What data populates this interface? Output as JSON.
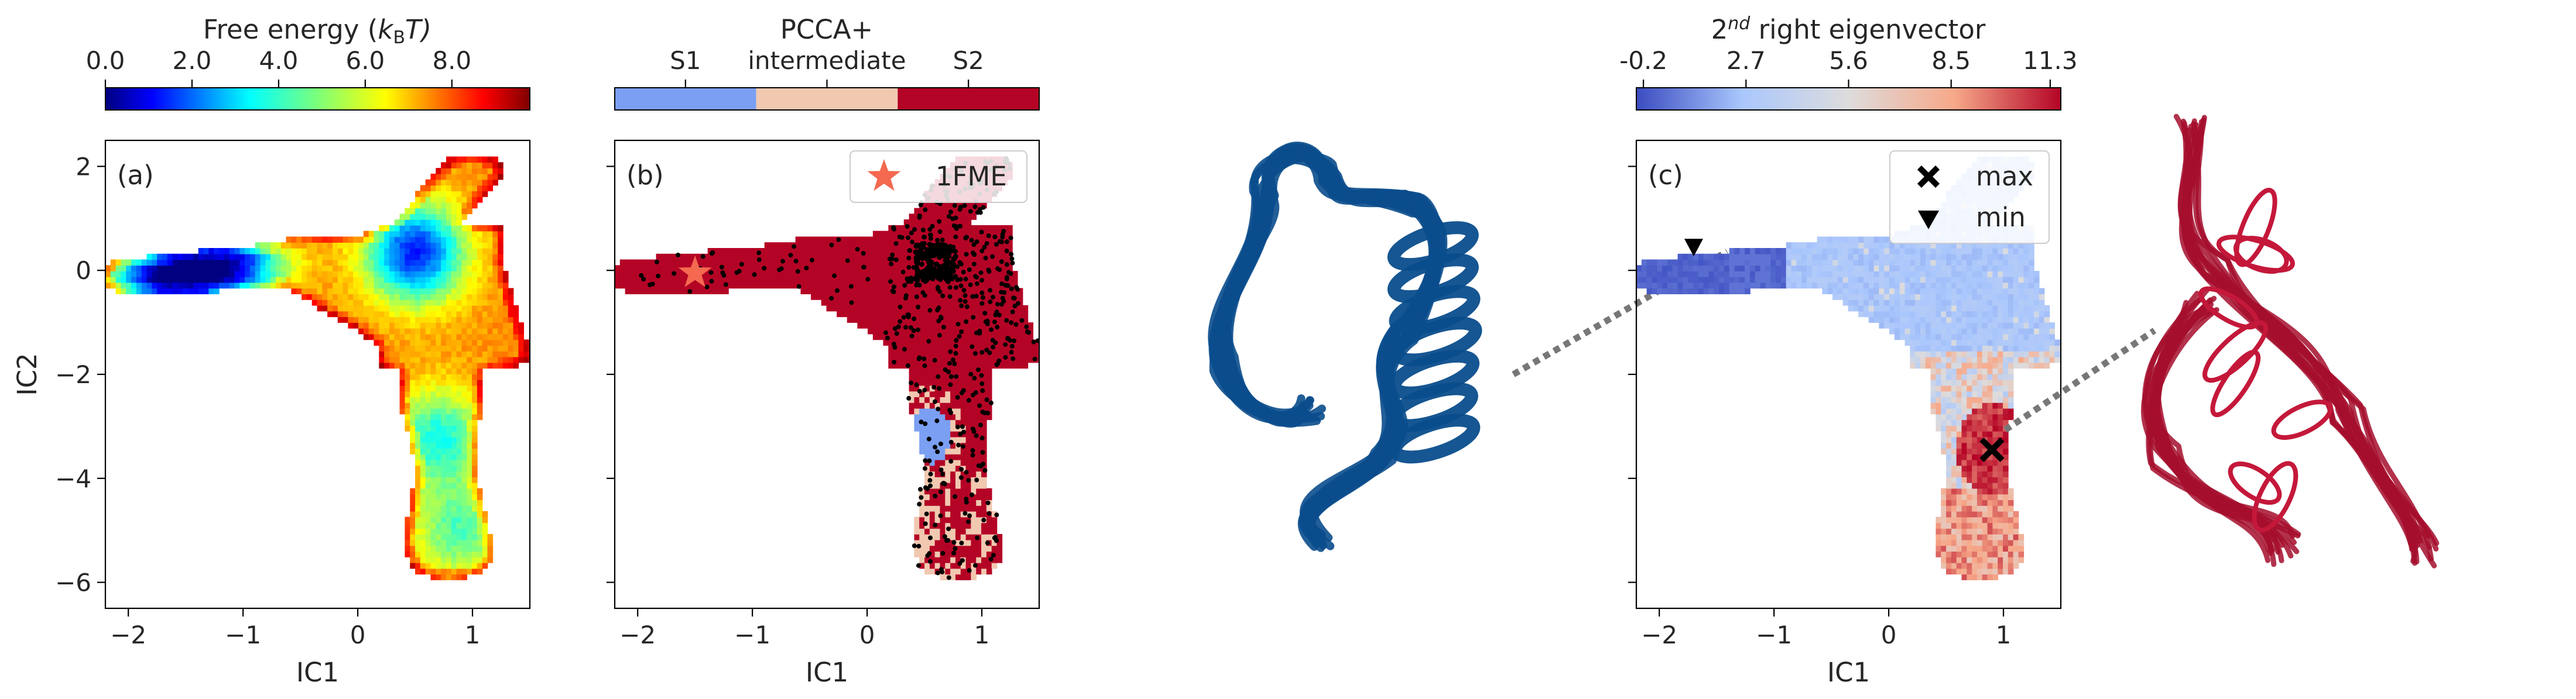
{
  "chart_data": [
    {
      "type": "heatmap",
      "panel_label": "(a)",
      "colorbar": {
        "title": "Free energy (",
        "title_symbol": "k",
        "title_sub": "B",
        "title_tail": "T)",
        "ticks": [
          "0.0",
          "2.0",
          "4.0",
          "6.0",
          "8.0"
        ],
        "tick_values": [
          0,
          2,
          4,
          6,
          8
        ],
        "range": [
          0,
          9.8
        ],
        "colormap": "jet"
      },
      "xlabel": "IC1",
      "ylabel": "IC2",
      "xticks": [
        "−2",
        "−1",
        "0",
        "1"
      ],
      "xtick_values": [
        -2,
        -1,
        0,
        1
      ],
      "yticks": [
        "2",
        "0",
        "−2",
        "−4",
        "−6"
      ],
      "ytick_values": [
        2,
        0,
        -2,
        -4,
        -6
      ],
      "xlim": [
        -2.2,
        1.5
      ],
      "ylim": [
        -6.5,
        2.5
      ],
      "minima": [
        {
          "x": 0.5,
          "y": 0.35,
          "depth": 0.95
        },
        {
          "x": -1.75,
          "y": -0.25,
          "depth": 0.9
        },
        {
          "x": -1.35,
          "y": 0.1,
          "depth": 0.75
        },
        {
          "x": -1.0,
          "y": 0.2,
          "depth": 0.6
        },
        {
          "x": 0.7,
          "y": -3.2,
          "depth": 0.55
        },
        {
          "x": 0.9,
          "y": -5.0,
          "depth": 0.45
        }
      ]
    },
    {
      "type": "scatter",
      "panel_label": "(b)",
      "colorbar": {
        "title": "PCCA+",
        "categories": [
          "S1",
          "intermediate",
          "S2"
        ],
        "colors": [
          "#7b9ff2",
          "#f1c8b0",
          "#b40426"
        ]
      },
      "xlabel": "IC1",
      "xticks": [
        "−2",
        "−1",
        "0",
        "1"
      ],
      "xtick_values": [
        -2,
        -1,
        0,
        1
      ],
      "xlim": [
        -2.2,
        1.5
      ],
      "ylim": [
        -6.5,
        2.5
      ],
      "legend": {
        "label": "1FME",
        "marker": "star",
        "color": "#f4694f",
        "position": "top-right"
      },
      "reference_point": {
        "label": "1FME",
        "x": -1.5,
        "y": -0.05
      },
      "sample_points_color": "#000000"
    },
    {
      "type": "scatter",
      "panel_label": "(c)",
      "colorbar": {
        "title": "2",
        "title_sup": "nd",
        "title_tail": " right eigenvector",
        "ticks": [
          "-0.2",
          "2.7",
          "5.6",
          "8.5",
          "11.3"
        ],
        "tick_values": [
          -0.2,
          2.7,
          5.6,
          8.5,
          11.3
        ],
        "range": [
          -0.4,
          11.6
        ],
        "colormap": "coolwarm"
      },
      "xlabel": "IC1",
      "xticks": [
        "−2",
        "−1",
        "0",
        "1"
      ],
      "xtick_values": [
        -2,
        -1,
        0,
        1
      ],
      "xlim": [
        -2.2,
        1.5
      ],
      "ylim": [
        -6.5,
        2.5
      ],
      "legend": {
        "position": "top-right",
        "entries": [
          {
            "label": "max",
            "marker": "x"
          },
          {
            "label": "min",
            "marker": "triangle-down"
          }
        ]
      },
      "max_point": {
        "x": 0.9,
        "y": -3.45
      },
      "min_point": {
        "x": -1.7,
        "y": 0.45
      }
    }
  ],
  "structures": [
    {
      "name": "blue-structure",
      "color": "#0a4d8c"
    },
    {
      "name": "red-structure",
      "color": "#a50e2d"
    }
  ]
}
